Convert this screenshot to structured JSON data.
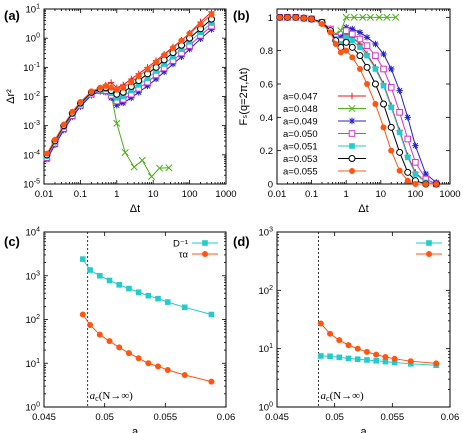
{
  "chart_data": [
    {
      "type": "line",
      "panel": "(a)",
      "xlabel": "Δt",
      "ylabel": "Δr²",
      "xscale": "log",
      "yscale": "log",
      "xlim": [
        0.01,
        1000
      ],
      "ylim": [
        1e-05,
        10
      ],
      "xticks": [
        {
          "v": 0.01,
          "l": "0.01"
        },
        {
          "v": 0.1,
          "l": "0.1"
        },
        {
          "v": 1,
          "l": "1"
        },
        {
          "v": 10,
          "l": "10"
        },
        {
          "v": 100,
          "l": "100"
        },
        {
          "v": 1000,
          "l": "1000"
        }
      ],
      "yticks": [
        {
          "v": 1e-05,
          "b": "10",
          "e": "-5"
        },
        {
          "v": 0.0001,
          "b": "10",
          "e": "-4"
        },
        {
          "v": 0.001,
          "b": "10",
          "e": "-3"
        },
        {
          "v": 0.01,
          "b": "10",
          "e": "-2"
        },
        {
          "v": 0.1,
          "b": "10",
          "e": "-1"
        },
        {
          "v": 1,
          "b": "10",
          "e": "0"
        },
        {
          "v": 10,
          "b": "10",
          "e": "1"
        }
      ],
      "series": [
        {
          "name": "a=0.047",
          "color": "#e41a1c",
          "marker": "plus",
          "x": [
            0.012,
            0.02,
            0.035,
            0.06,
            0.1,
            0.2,
            0.35,
            0.5,
            0.7,
            1,
            1.5,
            2.5,
            4,
            7,
            12,
            20,
            35,
            60,
            100,
            200,
            400
          ],
          "y": [
            9e-05,
            0.00028,
            0.0009,
            0.0025,
            0.0055,
            0.013,
            0.017,
            0.025,
            0.03,
            0.02,
            0.025,
            0.04,
            0.06,
            0.1,
            0.17,
            0.28,
            0.5,
            0.85,
            1.5,
            3.6,
            8
          ]
        },
        {
          "name": "a=0.048",
          "color": "#4daf1a",
          "marker": "x",
          "x": [
            0.012,
            0.02,
            0.035,
            0.06,
            0.1,
            0.2,
            0.35,
            0.5,
            0.7,
            1,
            1.7,
            3,
            5,
            9,
            15,
            27
          ],
          "y": [
            8e-05,
            0.00025,
            0.0008,
            0.0022,
            0.005,
            0.012,
            0.016,
            0.02,
            0.012,
            0.0012,
            0.00012,
            3.8e-05,
            6.5e-05,
            1.8e-05,
            3.5e-05,
            3.6e-05
          ]
        },
        {
          "name": "a=0.049",
          "color": "#2222cc",
          "marker": "star",
          "x": [
            0.012,
            0.02,
            0.035,
            0.06,
            0.1,
            0.2,
            0.35,
            0.5,
            0.7,
            1,
            1.5,
            2.5,
            4,
            7,
            12,
            20,
            35,
            60,
            100,
            200,
            400
          ],
          "y": [
            7e-05,
            0.00022,
            0.0007,
            0.002,
            0.0045,
            0.011,
            0.015,
            0.014,
            0.009,
            0.005,
            0.006,
            0.009,
            0.014,
            0.023,
            0.04,
            0.07,
            0.13,
            0.23,
            0.42,
            0.95,
            2
          ]
        },
        {
          "name": "a=0.050",
          "color": "#d633cc",
          "marker": "square-open",
          "x": [
            0.012,
            0.02,
            0.035,
            0.06,
            0.1,
            0.2,
            0.35,
            0.5,
            0.7,
            1,
            1.5,
            2.5,
            4,
            7,
            12,
            20,
            35,
            60,
            100,
            200,
            400
          ],
          "y": [
            8e-05,
            0.00025,
            0.0008,
            0.0022,
            0.005,
            0.012,
            0.016,
            0.016,
            0.011,
            0.007,
            0.008,
            0.012,
            0.019,
            0.031,
            0.055,
            0.095,
            0.17,
            0.31,
            0.56,
            1.25,
            2.6
          ]
        },
        {
          "name": "a=0.051",
          "color": "#22cccc",
          "marker": "square",
          "x": [
            0.012,
            0.02,
            0.035,
            0.06,
            0.1,
            0.2,
            0.35,
            0.5,
            0.7,
            1,
            1.5,
            2.5,
            4,
            7,
            12,
            20,
            35,
            60,
            100,
            200,
            400
          ],
          "y": [
            9e-05,
            0.00028,
            0.0009,
            0.0025,
            0.0055,
            0.013,
            0.017,
            0.018,
            0.013,
            0.009,
            0.01,
            0.016,
            0.025,
            0.042,
            0.075,
            0.13,
            0.23,
            0.42,
            0.75,
            1.6,
            3.3
          ]
        },
        {
          "name": "a=0.053",
          "color": "#000000",
          "marker": "circle-open",
          "x": [
            0.012,
            0.02,
            0.035,
            0.06,
            0.1,
            0.2,
            0.35,
            0.5,
            0.7,
            1,
            1.5,
            2.5,
            4,
            7,
            12,
            20,
            35,
            60,
            100,
            200,
            400
          ],
          "y": [
            0.0001,
            0.0003,
            0.001,
            0.0027,
            0.006,
            0.014,
            0.018,
            0.02,
            0.016,
            0.012,
            0.014,
            0.022,
            0.035,
            0.06,
            0.1,
            0.18,
            0.32,
            0.57,
            1,
            2.1,
            4.5
          ]
        },
        {
          "name": "a=0.055",
          "color": "#ff5511",
          "marker": "circle",
          "x": [
            0.012,
            0.02,
            0.035,
            0.06,
            0.1,
            0.2,
            0.35,
            0.5,
            0.7,
            1,
            1.5,
            2.5,
            4,
            7,
            12,
            20,
            35,
            60,
            100,
            200,
            400
          ],
          "y": [
            0.00011,
            0.00033,
            0.0011,
            0.003,
            0.0065,
            0.015,
            0.02,
            0.023,
            0.02,
            0.017,
            0.02,
            0.031,
            0.05,
            0.085,
            0.15,
            0.26,
            0.46,
            0.82,
            1.45,
            3,
            6.5
          ]
        }
      ]
    },
    {
      "type": "line",
      "panel": "(b)",
      "xlabel": "Δt",
      "ylabel": "Fₛ(q=2π,Δt)",
      "xscale": "log",
      "yscale": "linear",
      "xlim": [
        0.01,
        1000
      ],
      "ylim": [
        0,
        1.05
      ],
      "xticks": [
        {
          "v": 0.01,
          "l": "0.01"
        },
        {
          "v": 0.1,
          "l": "0.1"
        },
        {
          "v": 1,
          "l": "1"
        },
        {
          "v": 10,
          "l": "10"
        },
        {
          "v": 100,
          "l": "100"
        },
        {
          "v": 1000,
          "l": "1000"
        }
      ],
      "yticks": [
        {
          "v": 0,
          "l": "0"
        },
        {
          "v": 0.2,
          "l": "0.2"
        },
        {
          "v": 0.4,
          "l": "0.4"
        },
        {
          "v": 0.6,
          "l": "0.6"
        },
        {
          "v": 0.8,
          "l": "0.8"
        },
        {
          "v": 1,
          "l": "1"
        }
      ],
      "legend_position": "bottom-left",
      "series": [
        {
          "name": "a=0.047",
          "color": "#e41a1c",
          "marker": "plus",
          "x": [
            0.012,
            0.02,
            0.035,
            0.06,
            0.1,
            0.2,
            0.35,
            0.5,
            0.7,
            1,
            1.5,
            2.5,
            4,
            7,
            12,
            20,
            35,
            60,
            100,
            200,
            400
          ],
          "y": [
            1,
            1,
            1,
            0.995,
            0.99,
            0.97,
            0.93,
            0.88,
            0.84,
            0.9,
            0.88,
            0.84,
            0.78,
            0.7,
            0.6,
            0.47,
            0.32,
            0.17,
            0.07,
            0.01,
            0
          ]
        },
        {
          "name": "a=0.048",
          "color": "#4daf1a",
          "marker": "x",
          "x": [
            0.012,
            0.02,
            0.035,
            0.06,
            0.1,
            0.2,
            0.35,
            0.5,
            0.7,
            1,
            1.7,
            3,
            5,
            9,
            15,
            27
          ],
          "y": [
            1,
            1,
            1,
            0.995,
            0.99,
            0.97,
            0.93,
            0.9,
            0.92,
            1,
            1,
            1,
            1,
            1,
            1,
            1
          ]
        },
        {
          "name": "a=0.049",
          "color": "#2222cc",
          "marker": "star",
          "x": [
            0.012,
            0.02,
            0.035,
            0.06,
            0.1,
            0.2,
            0.35,
            0.5,
            0.7,
            1,
            1.5,
            2.5,
            4,
            7,
            12,
            20,
            35,
            60,
            100,
            200,
            400
          ],
          "y": [
            1,
            1,
            1,
            0.995,
            0.99,
            0.97,
            0.93,
            0.88,
            0.88,
            0.94,
            0.93,
            0.91,
            0.88,
            0.84,
            0.78,
            0.69,
            0.56,
            0.4,
            0.23,
            0.06,
            0.01
          ]
        },
        {
          "name": "a=0.050",
          "color": "#d633cc",
          "marker": "square-open",
          "x": [
            0.012,
            0.02,
            0.035,
            0.06,
            0.1,
            0.2,
            0.35,
            0.5,
            0.7,
            1,
            1.5,
            2.5,
            4,
            7,
            12,
            20,
            35,
            60,
            100,
            200,
            400
          ],
          "y": [
            1,
            1,
            1,
            0.995,
            0.99,
            0.97,
            0.93,
            0.88,
            0.86,
            0.92,
            0.9,
            0.87,
            0.83,
            0.77,
            0.69,
            0.58,
            0.43,
            0.27,
            0.13,
            0.03,
            0
          ]
        },
        {
          "name": "a=0.051",
          "color": "#22cccc",
          "marker": "square",
          "x": [
            0.012,
            0.02,
            0.035,
            0.06,
            0.1,
            0.2,
            0.35,
            0.5,
            0.7,
            1,
            1.5,
            2.5,
            4,
            7,
            12,
            20,
            35,
            60,
            100,
            200,
            400
          ],
          "y": [
            1,
            1,
            1,
            0.995,
            0.99,
            0.97,
            0.92,
            0.87,
            0.84,
            0.88,
            0.86,
            0.82,
            0.77,
            0.69,
            0.59,
            0.46,
            0.31,
            0.16,
            0.06,
            0.01,
            0
          ]
        },
        {
          "name": "a=0.053",
          "color": "#000000",
          "marker": "circle-open",
          "x": [
            0.012,
            0.02,
            0.035,
            0.06,
            0.1,
            0.2,
            0.35,
            0.5,
            0.7,
            1,
            1.5,
            2.5,
            4,
            7,
            12,
            20,
            35,
            60,
            100,
            200,
            400
          ],
          "y": [
            1,
            1,
            1,
            0.995,
            0.99,
            0.97,
            0.92,
            0.86,
            0.82,
            0.85,
            0.82,
            0.77,
            0.7,
            0.6,
            0.48,
            0.34,
            0.19,
            0.07,
            0.02,
            0,
            0
          ]
        },
        {
          "name": "a=0.055",
          "color": "#ff5511",
          "marker": "circle",
          "x": [
            0.012,
            0.02,
            0.035,
            0.06,
            0.1,
            0.2,
            0.35,
            0.5,
            0.7,
            1,
            1.5,
            2.5,
            4,
            7,
            12,
            20,
            35,
            60,
            100,
            200,
            400
          ],
          "y": [
            1,
            1,
            1,
            0.995,
            0.99,
            0.96,
            0.91,
            0.84,
            0.79,
            0.8,
            0.76,
            0.69,
            0.6,
            0.48,
            0.34,
            0.2,
            0.08,
            0.02,
            0,
            0,
            0
          ]
        }
      ]
    },
    {
      "type": "line",
      "panel": "(c)",
      "xlabel": "a",
      "ylabel": "",
      "xscale": "linear",
      "yscale": "log",
      "xlim": [
        0.045,
        0.06
      ],
      "ylim": [
        1,
        10000
      ],
      "xticks": [
        {
          "v": 0.045,
          "l": "0.045"
        },
        {
          "v": 0.05,
          "l": "0.05"
        },
        {
          "v": 0.055,
          "l": "0.055"
        },
        {
          "v": 0.06,
          "l": "0.06"
        }
      ],
      "yticks": [
        {
          "v": 1,
          "b": "10",
          "e": "0"
        },
        {
          "v": 10,
          "b": "10",
          "e": "1"
        },
        {
          "v": 100,
          "b": "10",
          "e": "2"
        },
        {
          "v": 1000,
          "b": "10",
          "e": "3"
        },
        {
          "v": 10000,
          "b": "10",
          "e": "4"
        }
      ],
      "legend_position": "top-right",
      "vline": {
        "x": 0.0486,
        "label_main": "a",
        "label_sub": "c",
        "label_rest": "(N→∞)"
      },
      "series": [
        {
          "name": "D⁻¹",
          "color": "#22cccc",
          "marker": "square",
          "x": [
            0.0482,
            0.0488,
            0.0496,
            0.0504,
            0.0512,
            0.052,
            0.0528,
            0.0536,
            0.0544,
            0.0552,
            0.0566,
            0.0588
          ],
          "y": [
            2400,
            1350,
            1000,
            780,
            620,
            510,
            420,
            350,
            300,
            250,
            190,
            130
          ]
        },
        {
          "name": "τα",
          "color": "#ff5511",
          "marker": "circle",
          "x": [
            0.0482,
            0.0488,
            0.0496,
            0.0504,
            0.0512,
            0.052,
            0.0528,
            0.0536,
            0.0544,
            0.0552,
            0.0566,
            0.0588
          ],
          "y": [
            130,
            75,
            45,
            32,
            23,
            17,
            13,
            10,
            8.5,
            7,
            5.4,
            3.8
          ]
        }
      ]
    },
    {
      "type": "line",
      "panel": "(d)",
      "xlabel": "a",
      "ylabel": "",
      "xscale": "linear",
      "yscale": "log",
      "xlim": [
        0.045,
        0.06
      ],
      "ylim": [
        1,
        1000
      ],
      "xticks": [
        {
          "v": 0.045,
          "l": "0.045"
        },
        {
          "v": 0.05,
          "l": "0.05"
        },
        {
          "v": 0.055,
          "l": "0.055"
        },
        {
          "v": 0.06,
          "l": "0.06"
        }
      ],
      "yticks": [
        {
          "v": 1,
          "b": "10",
          "e": "0"
        },
        {
          "v": 10,
          "b": "10",
          "e": "1"
        },
        {
          "v": 100,
          "b": "10",
          "e": "2"
        },
        {
          "v": 1000,
          "b": "10",
          "e": "3"
        }
      ],
      "legend_position": "top-right",
      "vline": {
        "x": 0.0486,
        "label_main": "a",
        "label_sub": "c",
        "label_rest": "(N→∞)"
      },
      "series": [
        {
          "name": "",
          "color": "#22cccc",
          "marker": "square",
          "x": [
            0.0488,
            0.0496,
            0.0504,
            0.0512,
            0.052,
            0.0528,
            0.0536,
            0.0544,
            0.0552,
            0.0566,
            0.0588
          ],
          "y": [
            7.5,
            7.4,
            7.1,
            6.8,
            6.6,
            6.4,
            6.2,
            6,
            5.8,
            5.5,
            5.2
          ]
        },
        {
          "name": "",
          "color": "#ff5511",
          "marker": "circle",
          "x": [
            0.0488,
            0.0496,
            0.0504,
            0.0512,
            0.052,
            0.0528,
            0.0536,
            0.0544,
            0.0552,
            0.0566,
            0.0588
          ],
          "y": [
            27,
            18,
            14,
            11.5,
            10,
            8.8,
            7.9,
            7.2,
            6.7,
            6.1,
            5.6
          ]
        }
      ]
    }
  ]
}
